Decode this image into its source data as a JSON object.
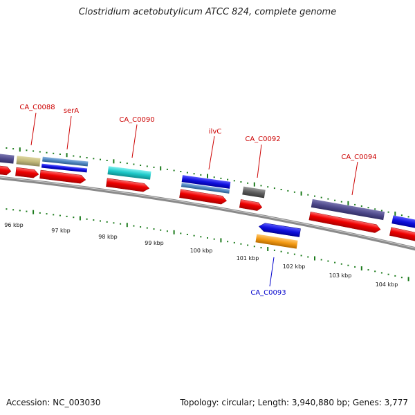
{
  "title": "Clostridium acetobutylicum ATCC 824, complete genome",
  "footer": {
    "accession": "Accession: NC_003030",
    "summary": "Topology: circular; Length: 3,940,880 bp; Genes: 3,777"
  },
  "colors": {
    "label_red": "#cc0000",
    "label_blue": "#0000cc",
    "tick_green": "#1a7a1a",
    "backbone": "#888888",
    "cds_red": "#ee0000",
    "purple": "#4f4a8c",
    "khaki": "#c2b97a",
    "blue": "#1010dd",
    "steel": "#4f86c0",
    "cyan": "#1ec8c8",
    "gray": "#5e5e5e",
    "orange": "#f39a14"
  },
  "axis": {
    "unit": "kbp",
    "kbp_labels": [
      "96 kbp",
      "97 kbp",
      "98 kbp",
      "99 kbp",
      "100 kbp",
      "101 kbp",
      "102 kbp",
      "103 kbp",
      "104 kbp"
    ]
  },
  "genes": [
    {
      "name": "CA_C0088",
      "strand": "forward"
    },
    {
      "name": "serA",
      "strand": "forward"
    },
    {
      "name": "CA_C0090",
      "strand": "forward"
    },
    {
      "name": "ilvC",
      "strand": "forward"
    },
    {
      "name": "CA_C0092",
      "strand": "forward"
    },
    {
      "name": "CA_C0093",
      "strand": "reverse"
    },
    {
      "name": "CA_C0094",
      "strand": "forward"
    }
  ]
}
